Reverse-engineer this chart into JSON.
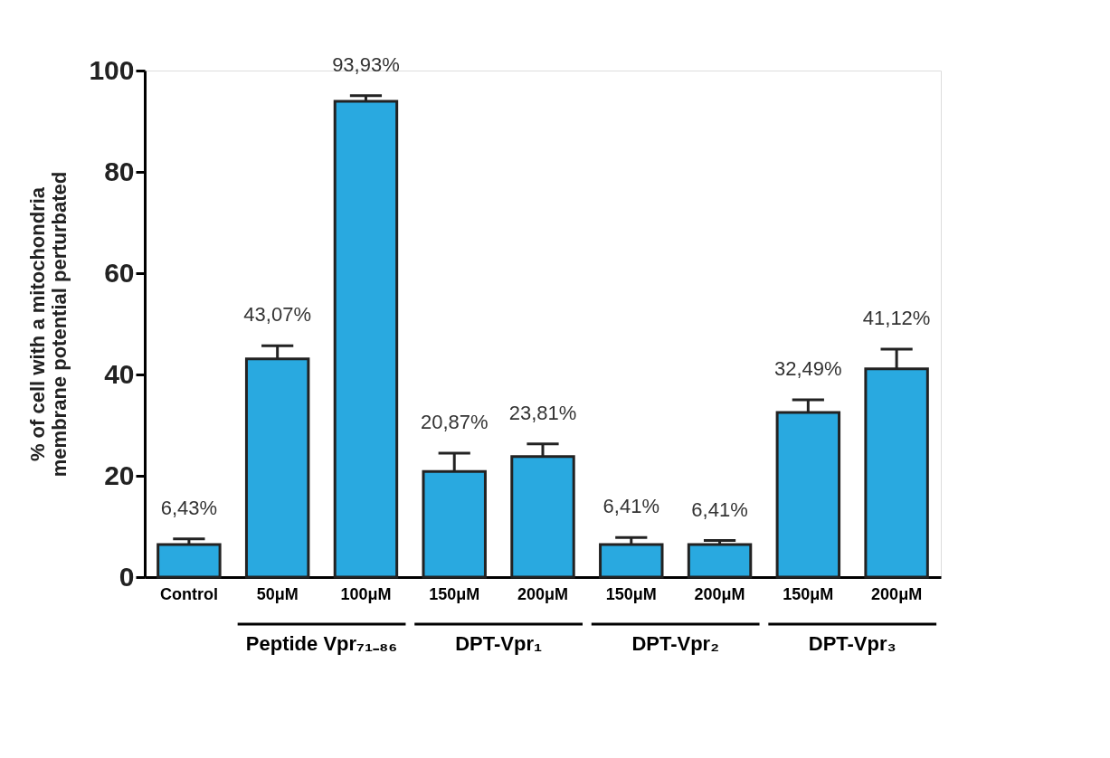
{
  "chart_data": {
    "type": "bar",
    "ylabel": "% of cell with a mitochondria membrane potential perturbated",
    "categories": [
      "Control",
      "50μM",
      "100μM",
      "150μM",
      "200μM",
      "150μM",
      "200μM",
      "150μM",
      "200μM"
    ],
    "values": [
      6.43,
      43.07,
      93.93,
      20.87,
      23.81,
      6.41,
      6.41,
      32.49,
      41.12
    ],
    "errors": [
      1.1,
      2.6,
      1.1,
      3.6,
      2.5,
      1.4,
      0.8,
      2.5,
      3.9
    ],
    "value_labels": [
      "6,43%",
      "43,07%",
      "93,93%",
      "20,87%",
      "23,81%",
      "6,41%",
      "6,41%",
      "32,49%",
      "41,12%"
    ],
    "color": "#29a9e0",
    "ylim": [
      0,
      100
    ],
    "yticks": [
      0,
      20,
      40,
      60,
      80,
      100
    ],
    "grid": false,
    "annotations": [
      "Peptide  Vpr₇₁₋₈₆",
      "DPT-Vpr₁",
      "DPT-Vpr₂",
      "DPT-Vpr₃"
    ]
  }
}
